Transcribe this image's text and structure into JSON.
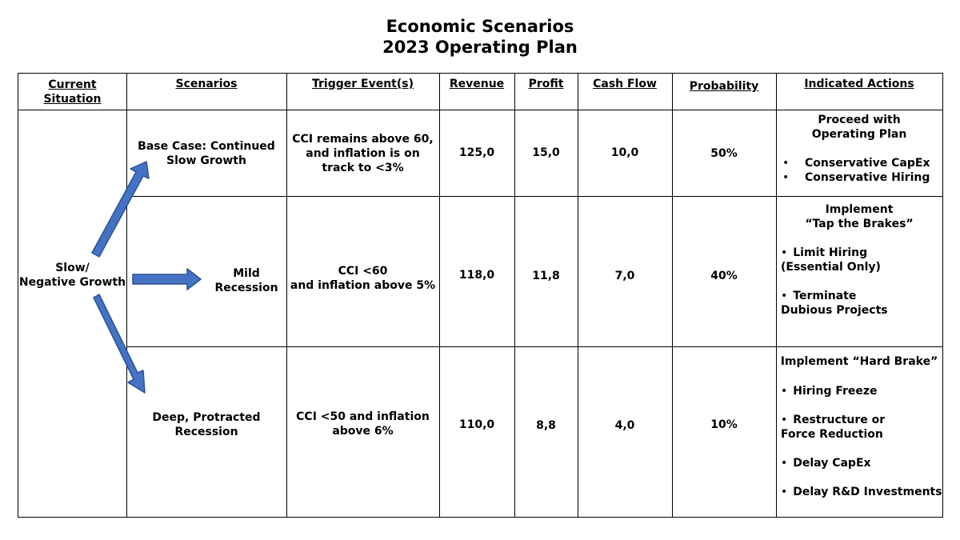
{
  "title": {
    "line1": "Economic Scenarios",
    "line2": "2023 Operating Plan"
  },
  "headers": {
    "current_situation": [
      "Current",
      "Situation"
    ],
    "scenarios": "Scenarios",
    "trigger": "Trigger Event(s)",
    "revenue": "Revenue",
    "profit": "Profit",
    "cash_flow": "Cash Flow",
    "probability": "Probability",
    "actions": "Indicated Actions"
  },
  "current_situation": [
    "Slow/",
    "Negative Growth"
  ],
  "rows": [
    {
      "scenario": [
        "Base Case: Continued",
        "Slow Growth"
      ],
      "trigger": [
        "CCI remains above 60,",
        "and inflation is on",
        "track to <3%"
      ],
      "revenue": "125,0",
      "profit": "15,0",
      "cash_flow": "10,0",
      "probability": "50%",
      "actions": {
        "title": [
          "Proceed with",
          "Operating Plan"
        ],
        "bullets": [
          [
            "Conservative CapEx"
          ],
          [
            "Conservative Hiring"
          ]
        ]
      }
    },
    {
      "scenario": [
        "Mild",
        "Recession"
      ],
      "trigger": [
        "CCI <60",
        "and inflation above 5%"
      ],
      "revenue": "118,0",
      "profit": "11,8",
      "cash_flow": "7,0",
      "probability": "40%",
      "actions": {
        "title": [
          "Implement",
          "“Tap the Brakes”"
        ],
        "bullets": [
          [
            "Limit Hiring",
            "(Essential Only)"
          ],
          [
            "Terminate",
            "Dubious Projects"
          ]
        ]
      }
    },
    {
      "scenario": [
        "Deep, Protracted",
        "Recession"
      ],
      "trigger": [
        "CCI <50 and inflation",
        "above 6%"
      ],
      "revenue": "110,0",
      "profit": "8,8",
      "cash_flow": "4,0",
      "probability": "10%",
      "actions": {
        "title": [
          "Implement “Hard Brake”"
        ],
        "bullets": [
          [
            "Hiring Freeze"
          ],
          [
            "Restructure or",
            "Force Reduction"
          ],
          [
            "Delay CapEx"
          ],
          [
            "Delay R&D Investments"
          ]
        ]
      }
    }
  ],
  "colors": {
    "arrow_fill": "#4472C4",
    "arrow_stroke": "#2F528F",
    "grid": "#000000"
  }
}
